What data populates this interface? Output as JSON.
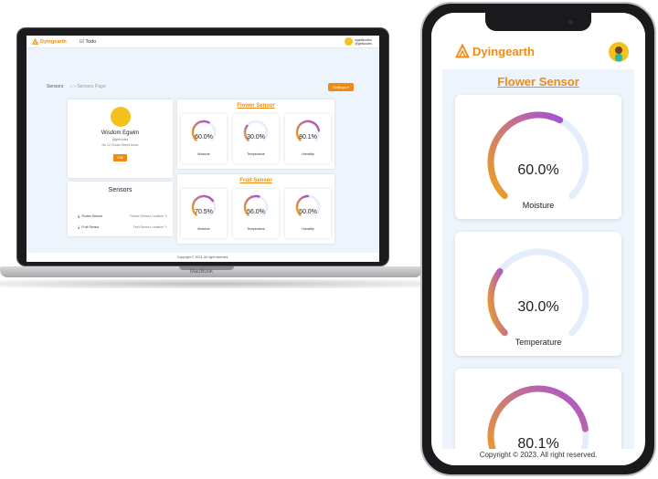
{
  "colors": {
    "accent": "#f08a15",
    "gauge_start": "#f0a21a",
    "gauge_end": "#a650d8",
    "track": "#e3edfb"
  },
  "laptop": {
    "brand": "Dyingearth",
    "todo": "Todo",
    "user_name": "wgetticodes",
    "user_sub": "@gettcodes",
    "breadcrumb": "Sensors",
    "breadcrumb_sub": "Sensors Page",
    "settings_btn": "Settings",
    "profile": {
      "name": "Wisdom Egwim",
      "handle": "@getcodes",
      "address": "No 12 Orodu Street Anow",
      "edit": "Edit"
    },
    "sensors_heading": "Sensors",
    "sensors": [
      {
        "name": "Flower Sensor",
        "location": "Flower Sensor Location"
      },
      {
        "name": "Fruit Sensor",
        "location": "Fruit Sensor Location"
      }
    ],
    "flower_title": "Flower Sensor",
    "flower": [
      {
        "value": "60.0%",
        "label": "Moisture",
        "level": 0.6
      },
      {
        "value": "30.0%",
        "label": "Temperature",
        "level": 0.3
      },
      {
        "value": "80.1%",
        "label": "Humidity",
        "level": 0.801
      }
    ],
    "fruit_title": "Fruit Sensor",
    "fruit": [
      {
        "value": "70.5%",
        "label": "Moisture",
        "level": 0.705
      },
      {
        "value": "56.0%",
        "label": "Temperature",
        "level": 0.56
      },
      {
        "value": "50.0%",
        "label": "Humidity",
        "level": 0.5
      }
    ],
    "footer": "Copyright © 2023. All right reserved.",
    "device_label": "MacBook"
  },
  "phone": {
    "brand": "Dyingearth",
    "title": "Flower Sensor",
    "gauges": [
      {
        "value": "60.0%",
        "label": "Moisture",
        "level": 0.6
      },
      {
        "value": "30.0%",
        "label": "Temperature",
        "level": 0.3
      },
      {
        "value": "80.1%",
        "label": "",
        "level": 0.801
      }
    ],
    "footer": "Copyright © 2023. All right reserved."
  }
}
